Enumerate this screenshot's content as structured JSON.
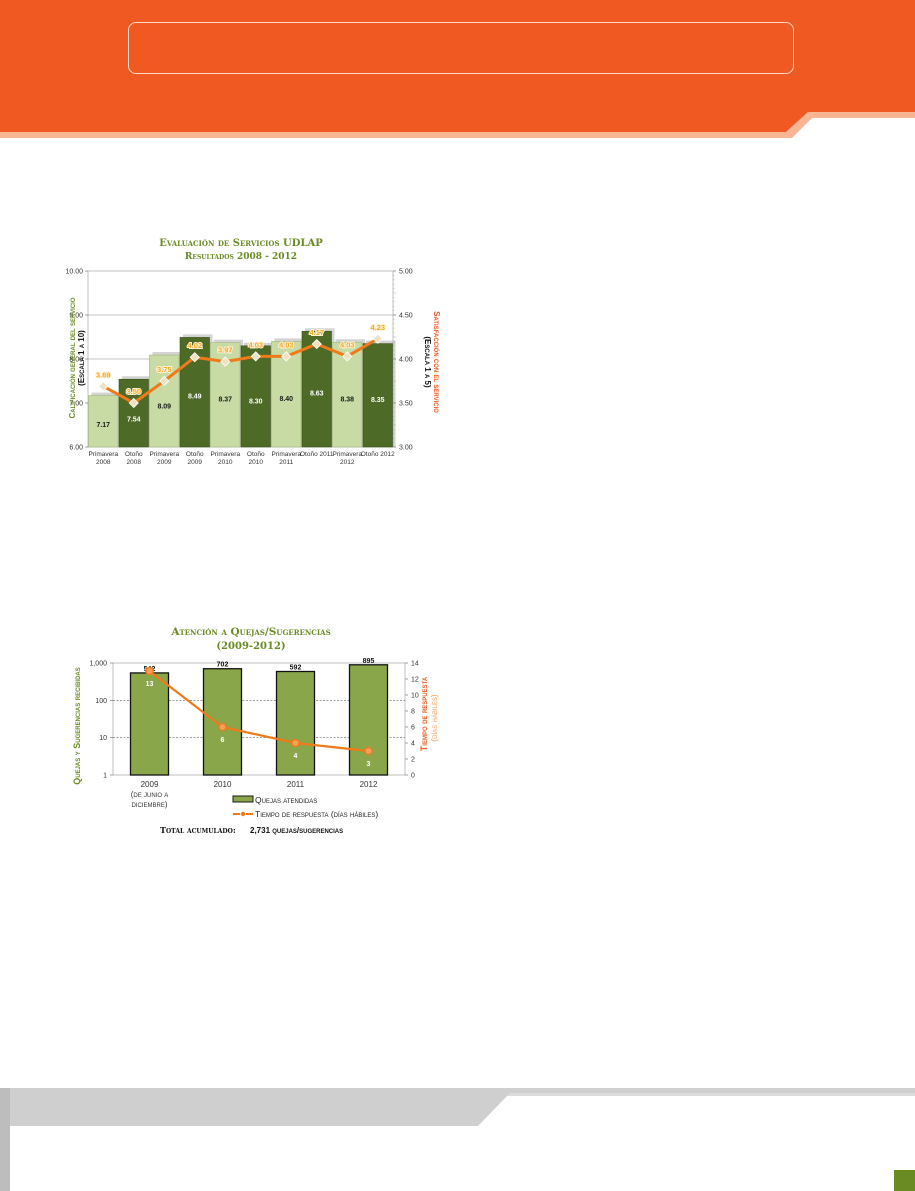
{
  "colors": {
    "header_orange": "#f05a22",
    "accent_green": "#6a8a22",
    "bar_light_green": "#c8dba4",
    "bar_dark_green": "#4e6a27",
    "bar_mid_green": "#8aa64a",
    "line_orange": "#f07a1a",
    "footer_gray": "#d2d2d2"
  },
  "chart_data": [
    {
      "type": "bar",
      "title": "Evaluación de Servicios UDLAP",
      "subtitle": "Resultados 2008 - 2012",
      "ylabel": "Calificación general del servicio",
      "ylabel_sub": "(Escala 1 a 10)",
      "y2label": "Satisfacción con el servicio",
      "y2label_sub": "(Escala 1 a 5)",
      "categories": [
        [
          "Primavera",
          "2008"
        ],
        [
          "Otoño",
          "2008"
        ],
        [
          "Primavera",
          "2009"
        ],
        [
          "Otoño",
          "2009"
        ],
        [
          "Primavera",
          "2010"
        ],
        [
          "Otoño",
          "2010"
        ],
        [
          "Primavera",
          "2011"
        ],
        [
          "Otoño 2011"
        ],
        [
          "Primavera",
          "2012"
        ],
        [
          "Otoño 2012"
        ]
      ],
      "ylim": [
        6,
        10
      ],
      "yticks": [
        "6.00",
        "7.00",
        "8.00",
        "9.00",
        "10.00"
      ],
      "y2lim": [
        3,
        5
      ],
      "y2ticks": [
        "3.00",
        "3.50",
        "4.00",
        "4.50",
        "5.00"
      ],
      "series": [
        {
          "type": "bar",
          "values": [
            7.17,
            7.54,
            8.09,
            8.49,
            8.37,
            8.3,
            8.4,
            8.63,
            8.38,
            8.35
          ],
          "labels": [
            "7.17",
            "7.54",
            "8.09",
            "8.49",
            "8.37",
            "8.30",
            "8.40",
            "8.63",
            "8.38",
            "8.35"
          ]
        },
        {
          "type": "line",
          "axis": "right",
          "values": [
            3.69,
            3.5,
            3.75,
            4.02,
            3.97,
            4.03,
            4.03,
            4.17,
            4.03,
            4.23
          ],
          "labels": [
            "3.69",
            "3.50",
            "3.75",
            "4.02",
            "3.97",
            "4.03",
            "4.03",
            "4.17",
            "4.03",
            "4.23"
          ]
        }
      ]
    },
    {
      "type": "bar",
      "title": "Atención a Quejas/Sugerencias",
      "subtitle": "(2009-2012)",
      "ylabel": "Quejas y Sugerencias recibidas",
      "y2label": "Tiempo de respuesta",
      "y2label_sub": "(días hábiles)",
      "categories": [
        [
          "2009",
          "(de junio a",
          "diciembre)"
        ],
        [
          "2010"
        ],
        [
          "2011"
        ],
        [
          "2012"
        ]
      ],
      "y_scale": "log",
      "ylim": [
        1,
        1000
      ],
      "yticks": [
        "1",
        "10",
        "100",
        "1,000"
      ],
      "y2lim": [
        0,
        14
      ],
      "y2ticks": [
        "0",
        "2",
        "4",
        "6",
        "8",
        "10",
        "12",
        "14"
      ],
      "series": [
        {
          "type": "bar",
          "name": "Quejas atendidas",
          "values": [
            542,
            702,
            592,
            895
          ],
          "labels": [
            "542",
            "702",
            "592",
            "895"
          ]
        },
        {
          "type": "line",
          "axis": "right",
          "name": "Tiempo de respuesta (días hábiles)",
          "values": [
            13,
            6,
            4,
            3
          ],
          "labels": [
            "13",
            "6",
            "4",
            "3"
          ]
        }
      ],
      "footer_label": "Total acumulado:",
      "footer_value": "2,731 quejas/sugerencias"
    }
  ]
}
